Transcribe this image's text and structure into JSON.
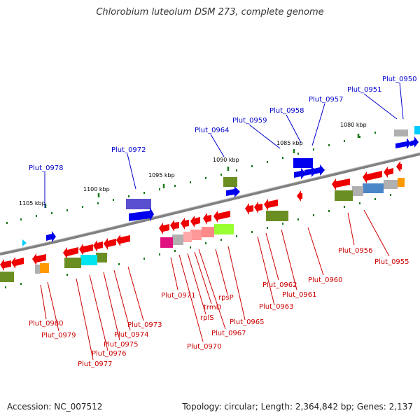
{
  "title": "Chlorobium luteolum DSM 273, complete genome",
  "footer": {
    "accession": "Accession: NC_007512",
    "summary": "Topology: circular; Length: 2,364,842 bp; Genes: 2,137"
  },
  "scale_labels": [
    "1080 kbp",
    "1085 kbp",
    "1090 kbp",
    "1095 kbp",
    "1100 kbp",
    "1105 kbp"
  ],
  "top_labels": [
    "Plut_0950",
    "Plut_0951",
    "Plut_0957",
    "Plut_0958",
    "Plut_0959",
    "Plut_0964",
    "Plut_0972",
    "Plut_0978"
  ],
  "bottom_labels": [
    "Plut_0955",
    "Plut_0956",
    "Plut_0960",
    "Plut_0961",
    "Plut_0962",
    "Plut_0963",
    "Plut_0965",
    "rpsP",
    "Plut_0967",
    "trmD",
    "rplS",
    "Plut_0970",
    "Plut_0971",
    "Plut_0973",
    "Plut_0974",
    "Plut_0975",
    "Plut_0976",
    "Plut_0977",
    "Plut_0979",
    "Plut_0980"
  ],
  "colors": {
    "top_label": "#0000cc",
    "bottom_label": "#cc0000",
    "forward_gene": "#0000ee",
    "reverse_gene": "#ee0000",
    "backbone": "#808080"
  }
}
